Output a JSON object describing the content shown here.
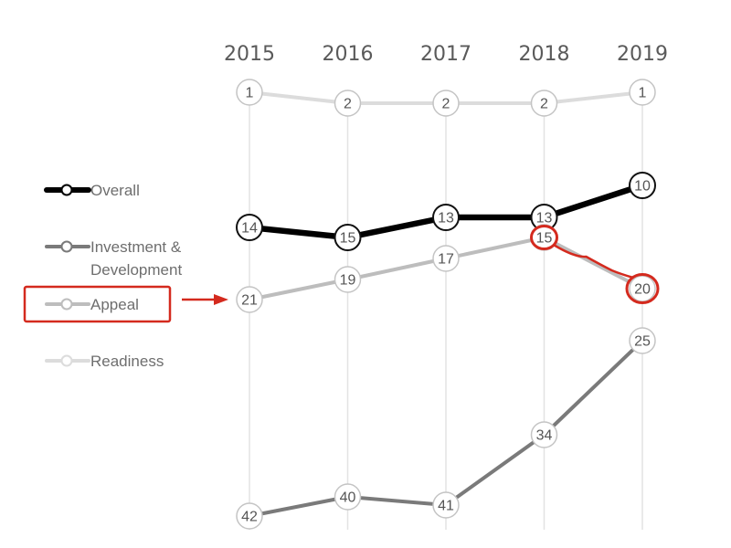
{
  "chart_data": {
    "type": "line",
    "x": [
      "2015",
      "2016",
      "2017",
      "2018",
      "2019"
    ],
    "y_axis": {
      "inverted": true,
      "meaning": "rank"
    },
    "grid": "vertical lines at each year",
    "legend_position": "left",
    "series": [
      {
        "name": "Readiness",
        "values": [
          1,
          2,
          2,
          2,
          1
        ],
        "color": "#dcdcdc"
      },
      {
        "name": "Overall",
        "values": [
          14,
          15,
          13,
          13,
          10
        ],
        "color": "#000000"
      },
      {
        "name": "Appeal",
        "values": [
          21,
          19,
          17,
          15,
          20
        ],
        "color": "#bdbdbd"
      },
      {
        "name": "Investment & Development",
        "values": [
          42,
          40,
          41,
          34,
          25
        ],
        "color": "#7a7a7a"
      }
    ],
    "legend": [
      {
        "lines": [
          "Overall"
        ],
        "color": "#000000",
        "series": "Overall"
      },
      {
        "lines": [
          "Investment &",
          "Development"
        ],
        "color": "#7a7a7a",
        "series": "Investment & Development"
      },
      {
        "lines": [
          "Appeal"
        ],
        "color": "#bdbdbd",
        "series": "Appeal",
        "highlighted": true
      },
      {
        "lines": [
          "Readiness"
        ],
        "color": "#dcdcdc",
        "series": "Readiness"
      }
    ],
    "annotations": [
      {
        "type": "highlight-box",
        "target": "legend: Appeal",
        "color": "#d42a1e"
      },
      {
        "type": "arrow",
        "from": "legend: Appeal",
        "to": "Appeal 2015",
        "color": "#d42a1e"
      },
      {
        "type": "circle",
        "target": "Appeal 2018",
        "color": "#d42a1e"
      },
      {
        "type": "circle",
        "target": "Appeal 2019",
        "color": "#d42a1e"
      },
      {
        "type": "hand-drawn-line",
        "from": "Appeal 2018",
        "to": "Appeal 2019",
        "color": "#d42a1e"
      }
    ]
  }
}
